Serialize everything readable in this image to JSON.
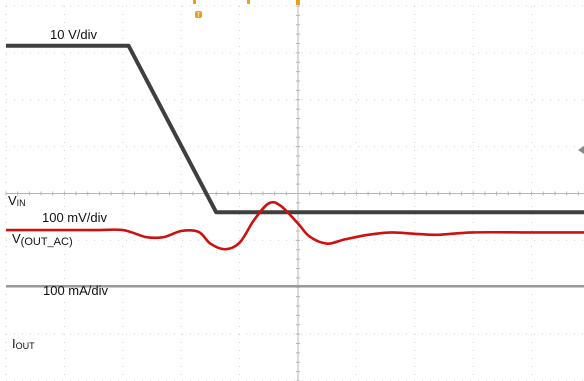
{
  "chart_data": {
    "type": "line",
    "title": "",
    "xlabel": "",
    "ylabel": "",
    "grid": true,
    "grid_divisions": {
      "x": 10,
      "y": 8
    },
    "series": [
      {
        "name": "VIN",
        "label_main": "V",
        "label_sub": "IN",
        "scale": "10 V/div",
        "color": "#3f3f3f",
        "x": [
          0,
          2.1,
          3.6,
          10
        ],
        "y": [
          7.15,
          7.15,
          3.6,
          3.6
        ]
      },
      {
        "name": "V(OUT_AC)",
        "label_main": "V",
        "label_sub": "(OUT_AC)",
        "scale": "100 mV/div",
        "color": "#cc1111",
        "x": [
          0,
          0.5,
          1.5,
          2.0,
          2.4,
          2.7,
          3.0,
          3.3,
          3.5,
          3.75,
          4.0,
          4.25,
          4.5,
          4.7,
          5.0,
          5.2,
          5.5,
          5.8,
          6.2,
          6.6,
          7.0,
          7.4,
          8.0,
          9.0,
          10
        ],
        "y": [
          3.22,
          3.22,
          3.22,
          3.22,
          3.07,
          3.07,
          3.2,
          3.18,
          2.93,
          2.81,
          2.95,
          3.44,
          3.79,
          3.74,
          3.36,
          3.08,
          2.93,
          3.02,
          3.12,
          3.17,
          3.14,
          3.12,
          3.17,
          3.17,
          3.17
        ]
      },
      {
        "name": "IOUT",
        "label_main": "I",
        "label_sub": "OUT",
        "scale": "100 mA/div",
        "color": "#9a9a9a",
        "x": [
          0,
          10
        ],
        "y": [
          2.02,
          2.02
        ]
      }
    ]
  },
  "markers": {
    "trigger_icon": "trigger-marker-icon",
    "trigger_color": "#e8a020"
  }
}
